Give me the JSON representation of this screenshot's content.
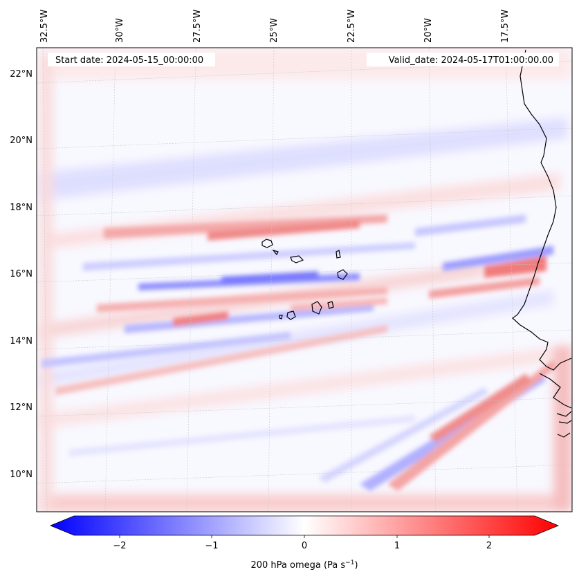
{
  "map": {
    "top_axis_labels": [
      "32.5°W",
      "30°W",
      "27.5°W",
      "25°W",
      "22.5°W",
      "20°W",
      "17.5°W"
    ],
    "left_axis_labels": [
      "22°N",
      "20°N",
      "18°N",
      "16°N",
      "14°N",
      "12°N",
      "10°N"
    ],
    "start_date": "Start date: 2024-05-15_00:00:00",
    "valid_date": "Valid_date: 2024-05-17T01:00:00.00",
    "field": "200 hPa omega",
    "colorbar": {
      "label_main": "200 hPa omega (Pa s",
      "label_exp": "−1",
      "label_close": ")",
      "ticks": [
        "−2",
        "−1",
        "0",
        "1",
        "2"
      ],
      "min": -2.5,
      "max": 2.5
    },
    "colors": {
      "neg": "#0000ff",
      "mid": "#ffffff",
      "pos": "#ff0000",
      "coast": "#000000"
    }
  }
}
